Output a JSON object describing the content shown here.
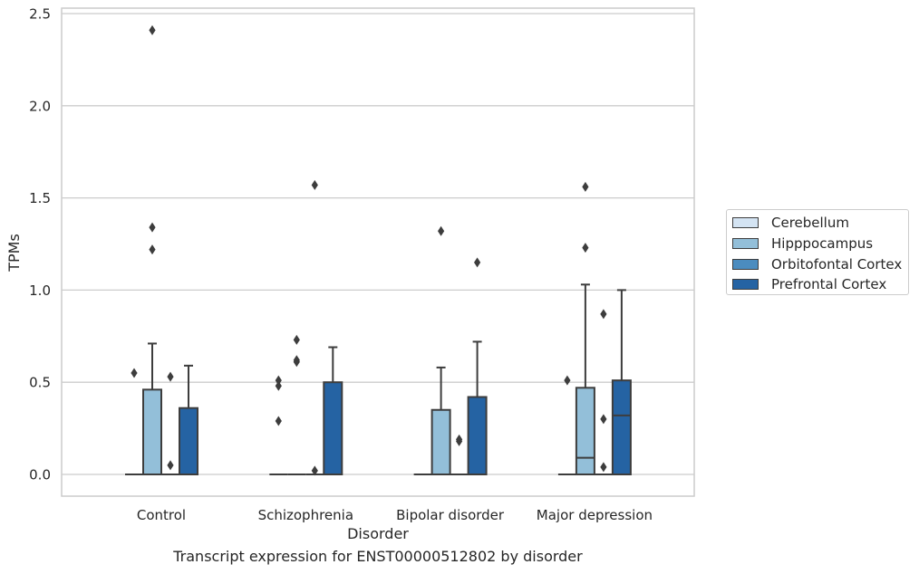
{
  "chart_data": {
    "type": "box",
    "caption": "Transcript expression for ENST00000512802 by disorder",
    "xlabel": "Disorder",
    "ylabel": "TPMs",
    "ylim": [
      -0.12,
      2.54
    ],
    "yticks": [
      "0.0",
      "0.5",
      "1.0",
      "1.5",
      "2.0",
      "2.5"
    ],
    "ytick_values": [
      0,
      0.5,
      1.0,
      1.5,
      2.0,
      2.5
    ],
    "categories": [
      "Control",
      "Schizophrenia",
      "Bipolar disorder",
      "Major depression"
    ],
    "grid": true,
    "legend_position": "right",
    "series": [
      {
        "name": "Cerebellum",
        "color": "#d4e4f3",
        "boxes": [
          {
            "q1": 0,
            "median": 0,
            "q3": 0,
            "whisker_low": 0,
            "whisker_high": 0,
            "outliers": [
              0.55
            ]
          },
          {
            "q1": 0,
            "median": 0,
            "q3": 0,
            "whisker_low": 0,
            "whisker_high": 0,
            "outliers": [
              0.29,
              0.48,
              0.51
            ]
          },
          {
            "q1": 0,
            "median": 0,
            "q3": 0,
            "whisker_low": 0,
            "whisker_high": 0,
            "outliers": []
          },
          {
            "q1": 0,
            "median": 0,
            "q3": 0,
            "whisker_low": 0,
            "whisker_high": 0,
            "outliers": [
              0.51
            ]
          }
        ]
      },
      {
        "name": "Hipppocampus",
        "color": "#93bfd9",
        "boxes": [
          {
            "q1": 0,
            "median": 0,
            "q3": 0.46,
            "whisker_low": 0,
            "whisker_high": 0.71,
            "outliers": [
              1.22,
              1.34,
              2.41
            ]
          },
          {
            "q1": 0,
            "median": 0,
            "q3": 0,
            "whisker_low": 0,
            "whisker_high": 0,
            "outliers": [
              0.61,
              0.62,
              0.73
            ]
          },
          {
            "q1": 0,
            "median": 0,
            "q3": 0.35,
            "whisker_low": 0,
            "whisker_high": 0.58,
            "outliers": [
              1.32
            ]
          },
          {
            "q1": 0,
            "median": 0.09,
            "q3": 0.47,
            "whisker_low": 0,
            "whisker_high": 1.03,
            "outliers": [
              1.23,
              1.56
            ]
          }
        ]
      },
      {
        "name": "Orbitofontal Cortex",
        "color": "#4b8cbf",
        "boxes": [
          {
            "q1": 0,
            "median": 0,
            "q3": 0,
            "whisker_low": 0,
            "whisker_high": 0,
            "outliers": [
              0.05,
              0.53
            ]
          },
          {
            "q1": 0,
            "median": 0,
            "q3": 0,
            "whisker_low": 0,
            "whisker_high": 0,
            "outliers": [
              0.02,
              1.57
            ]
          },
          {
            "q1": 0,
            "median": 0,
            "q3": 0,
            "whisker_low": 0,
            "whisker_high": 0,
            "outliers": [
              0.18,
              0.19
            ]
          },
          {
            "q1": 0,
            "median": 0,
            "q3": 0,
            "whisker_low": 0,
            "whisker_high": 0,
            "outliers": [
              0.04,
              0.3,
              0.87
            ]
          }
        ]
      },
      {
        "name": "Prefrontal Cortex",
        "color": "#2563a3",
        "boxes": [
          {
            "q1": 0,
            "median": 0,
            "q3": 0.36,
            "whisker_low": 0,
            "whisker_high": 0.59,
            "outliers": []
          },
          {
            "q1": 0,
            "median": 0,
            "q3": 0.5,
            "whisker_low": 0,
            "whisker_high": 0.69,
            "outliers": []
          },
          {
            "q1": 0,
            "median": 0,
            "q3": 0.42,
            "whisker_low": 0,
            "whisker_high": 0.72,
            "outliers": [
              1.15
            ]
          },
          {
            "q1": 0,
            "median": 0.32,
            "q3": 0.51,
            "whisker_low": 0,
            "whisker_high": 1.0,
            "outliers": []
          }
        ]
      }
    ]
  }
}
